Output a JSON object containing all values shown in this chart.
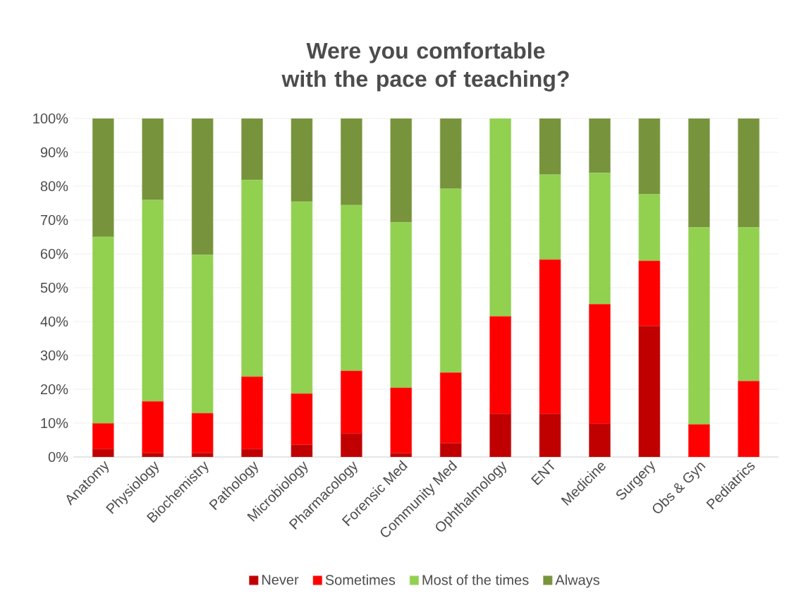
{
  "chart_data": {
    "type": "bar",
    "stacked": true,
    "title": "Were you comfortable with the pace of teaching?",
    "categories": [
      "Anatomy",
      "Physiology",
      "Biochemistry",
      "Pathology",
      "Microbiology",
      "Pharmacology",
      "Forensic Med",
      "Community Med",
      "Ophthalmology",
      "ENT",
      "Medicine",
      "Surgery",
      "Obs & Gyn",
      "Pediatrics"
    ],
    "series": [
      {
        "name": "Never",
        "color": "#c00000",
        "values": [
          2.3,
          1.2,
          1.2,
          2.3,
          3.6,
          6.9,
          1.1,
          4.1,
          12.7,
          12.7,
          9.8,
          38.7,
          0,
          0
        ]
      },
      {
        "name": "Sometimes",
        "color": "#ff0000",
        "values": [
          7.6,
          15.2,
          11.7,
          21.4,
          15.1,
          18.5,
          19.3,
          20.8,
          28.8,
          45.6,
          35.3,
          19.2,
          9.6,
          22.4
        ]
      },
      {
        "name": "Most of the times",
        "color": "#92d050",
        "values": [
          55.1,
          59.5,
          46.8,
          58.1,
          56.7,
          49.0,
          48.9,
          54.3,
          58.5,
          25.1,
          38.8,
          19.7,
          58.2,
          45.4
        ]
      },
      {
        "name": "Always",
        "color": "#77933c",
        "values": [
          35.0,
          24.1,
          40.3,
          18.2,
          24.6,
          25.6,
          30.7,
          20.8,
          0,
          16.6,
          16.1,
          22.4,
          32.2,
          32.2
        ]
      }
    ],
    "ylim": [
      0,
      100
    ],
    "yticks": [
      {
        "value": 0,
        "label": "0%"
      },
      {
        "value": 10,
        "label": "10%"
      },
      {
        "value": 20,
        "label": "20%"
      },
      {
        "value": 30,
        "label": "30%"
      },
      {
        "value": 40,
        "label": "40%"
      },
      {
        "value": 50,
        "label": "50%"
      },
      {
        "value": 60,
        "label": "60%"
      },
      {
        "value": 70,
        "label": "70%"
      },
      {
        "value": 80,
        "label": "80%"
      },
      {
        "value": 90,
        "label": "90%"
      },
      {
        "value": 100,
        "label": "100%"
      }
    ],
    "grid": "y",
    "legend": "bottom"
  }
}
